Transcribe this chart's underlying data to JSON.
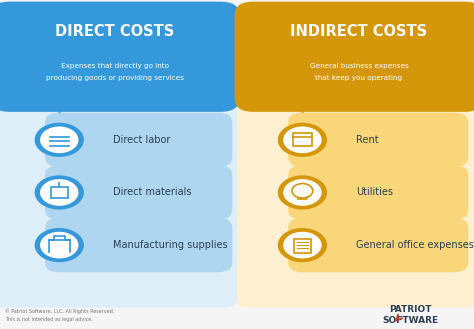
{
  "bg_color": "#f5f5f5",
  "left_bg": "#ddeef8",
  "right_bg": "#fdf0d0",
  "left_header_color": "#3498db",
  "right_header_color": "#d4970a",
  "left_bar_color": "#aed6f1",
  "right_bar_color": "#f9d67a",
  "left_circle_edge": "#3498db",
  "right_circle_edge": "#d4970a",
  "left_title": "DIRECT COSTS",
  "right_title": "INDIRECT COSTS",
  "left_subtitle_1": "Expenses that directly go into",
  "left_subtitle_2": "producing goods or providing services",
  "right_subtitle_1": "General business expenses",
  "right_subtitle_2": "that keep you operating",
  "left_items": [
    "Direct labor",
    "Direct materials",
    "Manufacturing supplies"
  ],
  "right_items": [
    "Rent",
    "Utilities",
    "General office expenses"
  ],
  "footer_left_1": "© Patriot Software, LLC. All Rights Reserved.",
  "footer_left_2": "This is not intended as legal advice.",
  "footer_right_1": "PATRIOT",
  "footer_right_2": "SOFTWARE"
}
